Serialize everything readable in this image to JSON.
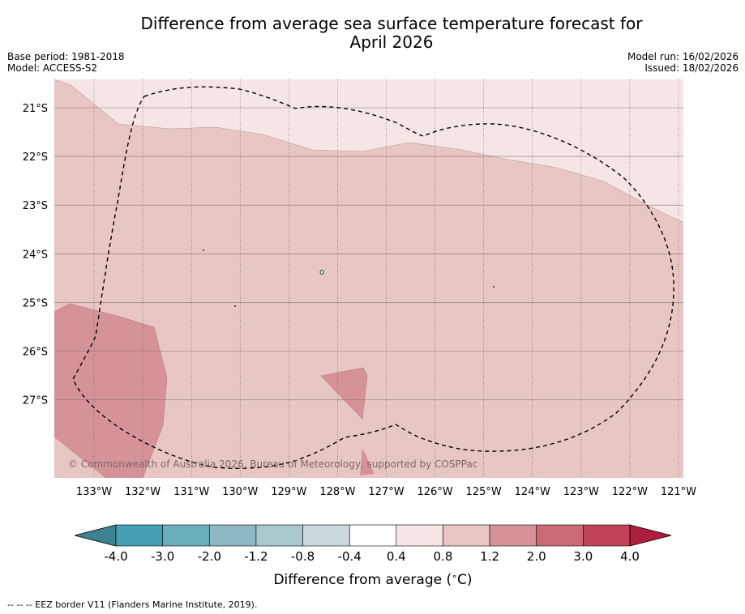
{
  "title_line1": "Difference from average sea surface temperature forecast for",
  "title_line2": "April 2026",
  "base_period": "Base period: 1981-2018",
  "model": "Model: ACCESS-S2",
  "model_run": "Model run: 16/02/2026",
  "issued": "Issued: 18/02/2026",
  "copyright": "© Commonwealth of Australia 2026, Bureau of Meteorology, supported by COSPPac",
  "footnote": "--  --  -- EEZ border V11 (Flanders Marine Institute, 2019).",
  "map": {
    "lon_labels": [
      "133°W",
      "132°W",
      "131°W",
      "130°W",
      "129°W",
      "128°W",
      "127°W",
      "126°W",
      "125°W",
      "124°W",
      "123°W",
      "122°W",
      "121°W"
    ],
    "lat_labels": [
      "21°S",
      "22°S",
      "23°S",
      "24°S",
      "25°S",
      "26°S",
      "27°S"
    ]
  },
  "colorbar": {
    "title": "Difference from average (°C)",
    "title_prefix": "Difference from average (",
    "title_degree": "∘",
    "title_suffix": "C)",
    "ticks": [
      "-4.0",
      "-3.0",
      "-2.0",
      "-1.2",
      "-0.8",
      "-0.4",
      "0.4",
      "0.8",
      "1.2",
      "2.0",
      "3.0",
      "4.0"
    ],
    "colors": [
      "#45a0b3",
      "#6aaebb",
      "#8cb8c3",
      "#a9c8cc",
      "#cbd8dc",
      "#ffffff",
      "#f5e6e5",
      "#e8c6c3",
      "#d69299",
      "#cc6a74",
      "#c04455"
    ],
    "under_color": "#3c8290",
    "over_color": "#ae1f3d"
  },
  "fill_colors": {
    "light": "#f5e6e5",
    "medium": "#e8c6c3",
    "dark": "#d69299"
  }
}
